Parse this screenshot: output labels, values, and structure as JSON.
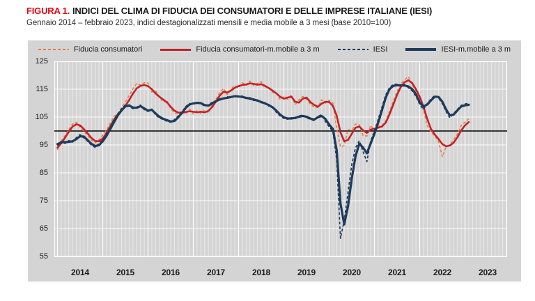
{
  "figure": {
    "label": "FIGURA 1.",
    "title": "INDICI DEL CLIMA DI FIDUCIA DEI CONSUMATORI E DELLE IMPRESE ITALIANE (IESI)",
    "subtitle": "Gennaio 2014 – febbraio 2023, indici destagionalizzati mensili e media mobile a 3 mesi (base 2010=100)"
  },
  "colors": {
    "title_accent": "#e30613",
    "figure_background": "#d4d4d4",
    "grid": "#ffffff",
    "baseline": "#000000",
    "consumer_monthly": "#e28140",
    "consumer_mobile": "#c42129",
    "iesi": "#1e3a5c"
  },
  "chart_data": {
    "type": "line",
    "title": "Indici del clima di fiducia dei consumatori e delle imprese italiane (IESI)",
    "x_start": "2014-01",
    "x_end": "2023-02",
    "frequency": "monthly",
    "n_points": 110,
    "categories_years": [
      "2014",
      "2015",
      "2016",
      "2017",
      "2018",
      "2019",
      "2020",
      "2021",
      "2022",
      "2023"
    ],
    "ylim": [
      55,
      125
    ],
    "yticks": [
      125,
      115,
      105,
      95,
      85,
      75,
      65,
      55
    ],
    "baseline": 100,
    "grid": true,
    "legend_position": "top",
    "series": [
      {
        "name": "Fiducia consumatori",
        "style": "dashed",
        "color": "#e28140",
        "values": [
          93.2,
          96.5,
          98.3,
          100.6,
          102.5,
          103.1,
          101.3,
          99.9,
          98.3,
          96.7,
          95.7,
          96.8,
          98.5,
          100.3,
          102.8,
          105.3,
          106.3,
          108.4,
          110.5,
          112.7,
          115.1,
          117.0,
          116.4,
          117.3,
          117.2,
          114.0,
          114.3,
          112.4,
          110.3,
          111.0,
          108.0,
          106.5,
          106.0,
          107.3,
          106.2,
          107.9,
          106.1,
          107.3,
          106.3,
          107.5,
          106.5,
          109.8,
          111.4,
          113.8,
          115.3,
          113.0,
          115.1,
          116.3,
          115.5,
          117.3,
          116.4,
          117.9,
          116.3,
          117.1,
          117.7,
          115.3,
          115.9,
          113.8,
          113.6,
          111.4,
          112.2,
          111.4,
          113.0,
          109.4,
          111.2,
          112.4,
          111.4,
          109.6,
          108.6,
          108.4,
          111.2,
          110.0,
          111.0,
          110.0,
          101.0,
          94.3,
          94.8,
          100.5,
          100.2,
          102.5,
          102.2,
          98.3,
          98.2,
          102.0,
          100.2,
          101.7,
          102.1,
          103.6,
          107.0,
          110.7,
          114.2,
          116.9,
          118.4,
          119.5,
          116.6,
          114.0,
          111.1,
          107.4,
          101.9,
          99.6,
          98.2,
          96.2,
          90.8,
          94.3,
          95.1,
          96.9,
          98.9,
          102.0,
          103.1,
          104.4
        ]
      },
      {
        "name": "Fiducia consumatori-m.mobile a 3 m",
        "style": "solid",
        "color": "#c42129",
        "values": [
          94.0,
          95.6,
          97.6,
          99.7,
          101.6,
          102.4,
          102.0,
          100.7,
          99.1,
          97.5,
          96.4,
          96.3,
          97.3,
          99.3,
          101.7,
          104.1,
          106.0,
          107.5,
          109.1,
          111.1,
          113.4,
          115.3,
          116.2,
          116.5,
          116.1,
          115.0,
          113.5,
          112.3,
          111.3,
          110.3,
          108.7,
          107.3,
          106.6,
          106.5,
          106.8,
          107.1,
          106.9,
          106.7,
          106.9,
          106.7,
          107.2,
          108.6,
          110.6,
          112.7,
          114.1,
          113.8,
          114.5,
          115.5,
          116.1,
          116.5,
          116.7,
          117.1,
          116.9,
          116.6,
          116.8,
          116.2,
          115.4,
          114.5,
          113.5,
          112.3,
          111.6,
          112.0,
          112.3,
          110.5,
          110.2,
          111.6,
          112.0,
          110.4,
          109.4,
          108.7,
          109.8,
          110.5,
          110.4,
          109.0,
          105.5,
          99.5,
          96.3,
          96.8,
          99.0,
          101.2,
          101.6,
          100.2,
          99.3,
          100.5,
          100.8,
          101.2,
          101.6,
          103.0,
          106.0,
          109.5,
          113.0,
          115.8,
          117.5,
          118.2,
          117.2,
          115.0,
          112.3,
          108.7,
          104.3,
          100.7,
          98.7,
          97.1,
          95.3,
          94.5,
          94.8,
          95.8,
          97.8,
          100.2,
          102.0,
          103.2
        ]
      },
      {
        "name": "IESI",
        "style": "dashed",
        "color": "#1e3a5c",
        "values": [
          94.7,
          96.3,
          95.5,
          96.6,
          96.0,
          97.6,
          98.7,
          97.5,
          96.3,
          94.9,
          94.1,
          95.5,
          96.8,
          99.0,
          101.4,
          104.0,
          106.2,
          108.0,
          109.4,
          108.8,
          108.0,
          108.6,
          109.3,
          107.6,
          107.0,
          107.9,
          105.7,
          104.7,
          104.1,
          103.5,
          103.1,
          104.1,
          105.4,
          106.9,
          108.8,
          109.9,
          109.5,
          110.5,
          109.7,
          109.0,
          109.4,
          110.3,
          110.5,
          111.6,
          111.5,
          112.3,
          112.0,
          112.8,
          112.1,
          112.6,
          111.6,
          112.0,
          110.9,
          111.2,
          110.1,
          110.2,
          108.9,
          108.8,
          106.7,
          105.4,
          104.5,
          104.2,
          104.8,
          104.3,
          105.4,
          105.8,
          104.7,
          104.2,
          103.7,
          105.3,
          105.8,
          103.4,
          101.5,
          99.8,
          89.5,
          61.5,
          68.0,
          78.0,
          88.0,
          94.0,
          96.5,
          92.5,
          89.0,
          96.5,
          100.0,
          104.2,
          108.6,
          113.0,
          115.6,
          116.7,
          116.8,
          116.1,
          116.6,
          115.5,
          114.4,
          112.4,
          109.5,
          107.7,
          109.9,
          111.5,
          112.8,
          111.8,
          109.8,
          106.9,
          104.7,
          106.3,
          107.8,
          109.2,
          109.7,
          110.0
        ]
      },
      {
        "name": "IESI-m.mobile a 3 m",
        "style": "solid",
        "color": "#1e3a5c",
        "values": [
          95.3,
          95.9,
          96.0,
          96.1,
          96.3,
          97.1,
          98.1,
          98.0,
          96.7,
          95.4,
          94.6,
          94.9,
          96.3,
          98.3,
          100.7,
          103.2,
          105.6,
          107.4,
          108.8,
          109.2,
          108.4,
          108.3,
          108.9,
          108.1,
          107.3,
          107.6,
          106.3,
          105.1,
          104.4,
          103.9,
          103.4,
          103.6,
          104.9,
          106.5,
          108.3,
          109.5,
          109.9,
          110.1,
          110.0,
          109.3,
          109.1,
          109.9,
          110.7,
          111.3,
          111.7,
          111.9,
          112.2,
          112.5,
          112.4,
          112.2,
          111.9,
          111.6,
          111.3,
          110.9,
          110.4,
          109.9,
          109.3,
          108.5,
          107.3,
          105.9,
          104.9,
          104.5,
          104.5,
          104.7,
          105.1,
          105.4,
          105.1,
          104.5,
          104.1,
          104.9,
          105.4,
          104.3,
          102.3,
          100.7,
          93.0,
          74.0,
          66.5,
          73.0,
          83.0,
          91.0,
          95.5,
          94.0,
          92.0,
          95.5,
          99.0,
          103.0,
          107.5,
          112.0,
          115.0,
          116.2,
          116.4,
          116.4,
          116.3,
          116.0,
          115.0,
          113.2,
          110.2,
          108.8,
          109.5,
          111.0,
          112.3,
          112.2,
          110.5,
          107.7,
          105.6,
          105.9,
          107.4,
          108.8,
          109.2,
          109.4
        ]
      }
    ]
  }
}
